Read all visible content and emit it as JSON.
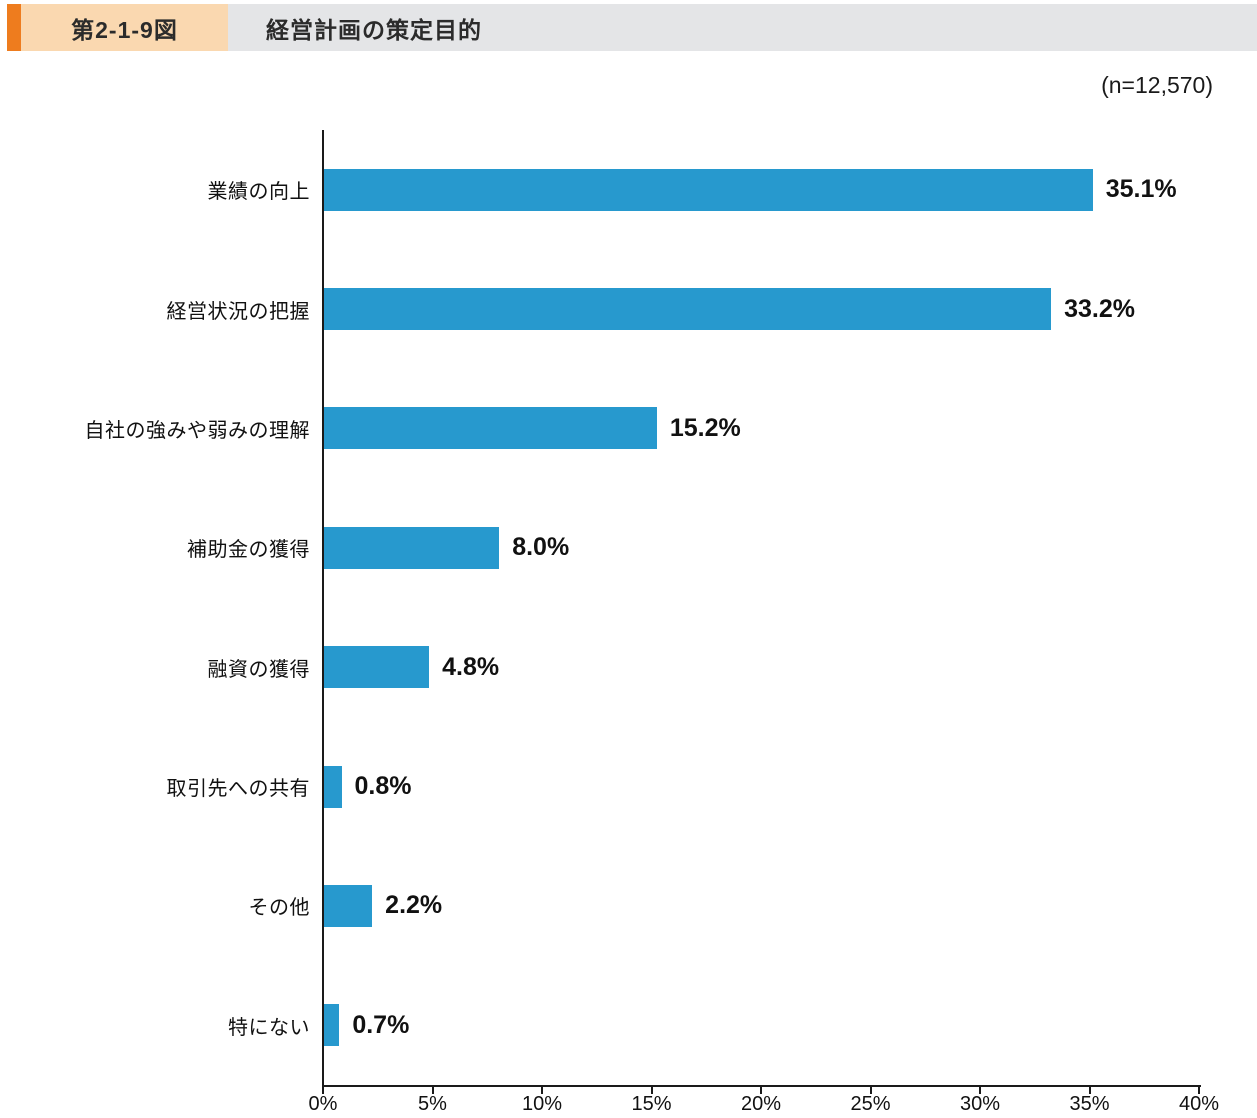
{
  "header": {
    "figure_label": "第2-1-9図",
    "title": "経営計画の策定目的"
  },
  "sample_note": "(n=12,570)",
  "colors": {
    "accent_orange": "#ee7c1e",
    "figure_label_bg": "#fad8b0",
    "title_bar_bg": "#e4e5e7",
    "bar_blue": "#2799ce",
    "axis_black": "#1a1a1a"
  },
  "chart_data": {
    "type": "bar",
    "orientation": "horizontal",
    "title": "経営計画の策定目的",
    "categories": [
      "業績の向上",
      "経営状況の把握",
      "自社の強みや弱みの理解",
      "補助金の獲得",
      "融資の獲得",
      "取引先への共有",
      "その他",
      "特にない"
    ],
    "values": [
      35.1,
      33.2,
      15.2,
      8.0,
      4.8,
      0.8,
      2.2,
      0.7
    ],
    "value_labels": [
      "35.1%",
      "33.2%",
      "15.2%",
      "8.0%",
      "4.8%",
      "0.8%",
      "2.2%",
      "0.7%"
    ],
    "xlabel": "",
    "ylabel": "",
    "xlim": [
      0,
      40
    ],
    "x_tick_step": 5,
    "x_ticks": [
      "0%",
      "5%",
      "10%",
      "15%",
      "20%",
      "25%",
      "30%",
      "35%",
      "40%"
    ],
    "grid": false,
    "legend": null,
    "bar_color": "#2799ce",
    "n": "12,570"
  }
}
